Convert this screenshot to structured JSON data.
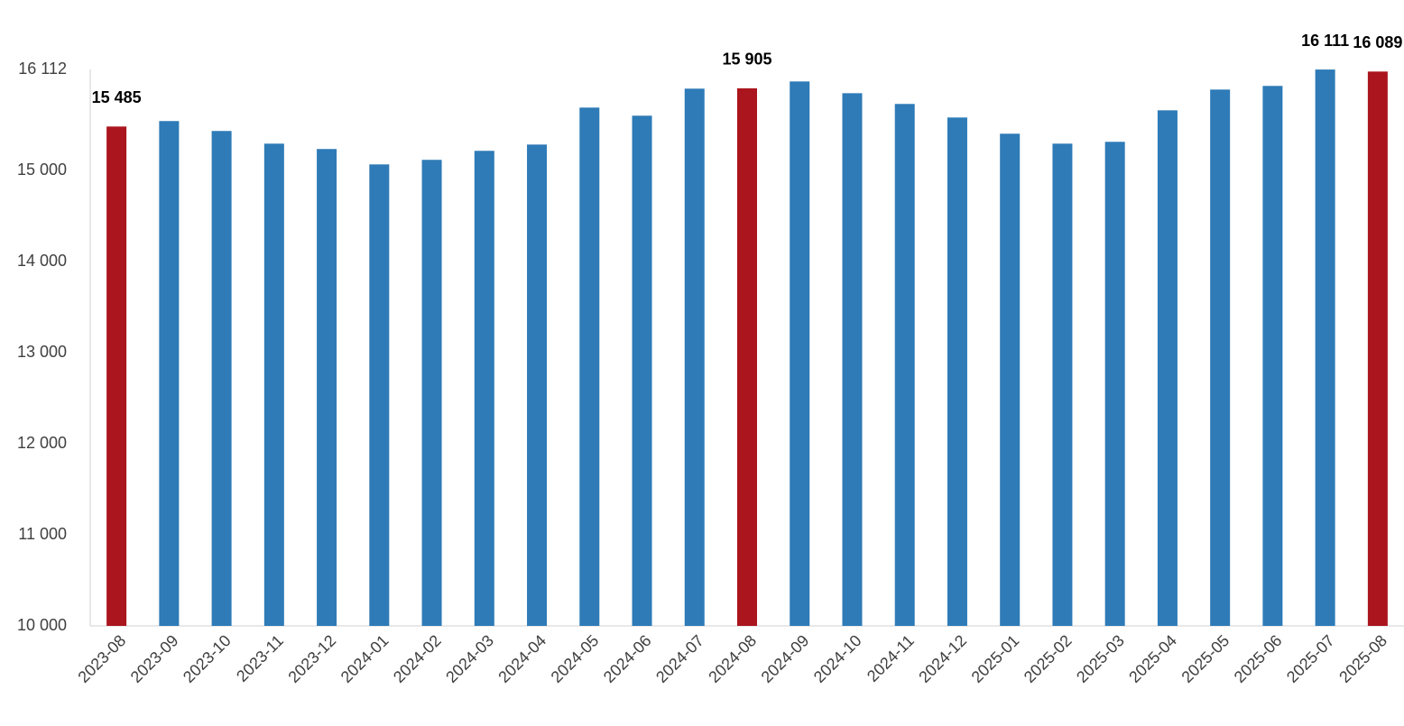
{
  "chart_data": {
    "type": "bar",
    "categories": [
      "2023-08",
      "2023-09",
      "2023-10",
      "2023-11",
      "2023-12",
      "2024-01",
      "2024-02",
      "2024-03",
      "2024-04",
      "2024-05",
      "2024-06",
      "2024-07",
      "2024-08",
      "2024-09",
      "2024-10",
      "2024-11",
      "2024-12",
      "2025-01",
      "2025-02",
      "2025-03",
      "2025-04",
      "2025-05",
      "2025-06",
      "2025-07",
      "2025-08"
    ],
    "values": [
      15485,
      15545,
      15436,
      15297,
      15238,
      15069,
      15119,
      15218,
      15287,
      15693,
      15604,
      15901,
      15905,
      15980,
      15851,
      15733,
      15584,
      15406,
      15297,
      15317,
      15663,
      15891,
      15931,
      16111,
      16089
    ],
    "value_labels": [
      "15 485",
      null,
      null,
      null,
      null,
      null,
      null,
      null,
      null,
      null,
      null,
      null,
      "15 905",
      null,
      null,
      null,
      null,
      null,
      null,
      null,
      null,
      null,
      null,
      "16 111",
      "16 089"
    ],
    "colors": [
      "#ab151e",
      "#2e7bb7",
      "#2e7bb7",
      "#2e7bb7",
      "#2e7bb7",
      "#2e7bb7",
      "#2e7bb7",
      "#2e7bb7",
      "#2e7bb7",
      "#2e7bb7",
      "#2e7bb7",
      "#2e7bb7",
      "#ab151e",
      "#2e7bb7",
      "#2e7bb7",
      "#2e7bb7",
      "#2e7bb7",
      "#2e7bb7",
      "#2e7bb7",
      "#2e7bb7",
      "#2e7bb7",
      "#2e7bb7",
      "#2e7bb7",
      "#2e7bb7",
      "#ab151e"
    ],
    "ylim": [
      10000,
      16112
    ],
    "yticks": [
      {
        "value": 10000,
        "label": "10 000"
      },
      {
        "value": 11000,
        "label": "11 000"
      },
      {
        "value": 12000,
        "label": "12 000"
      },
      {
        "value": 13000,
        "label": "13 000"
      },
      {
        "value": 14000,
        "label": "14 000"
      },
      {
        "value": 15000,
        "label": "15 000"
      },
      {
        "value": 16112,
        "label": "16 112"
      }
    ],
    "grid": false
  }
}
